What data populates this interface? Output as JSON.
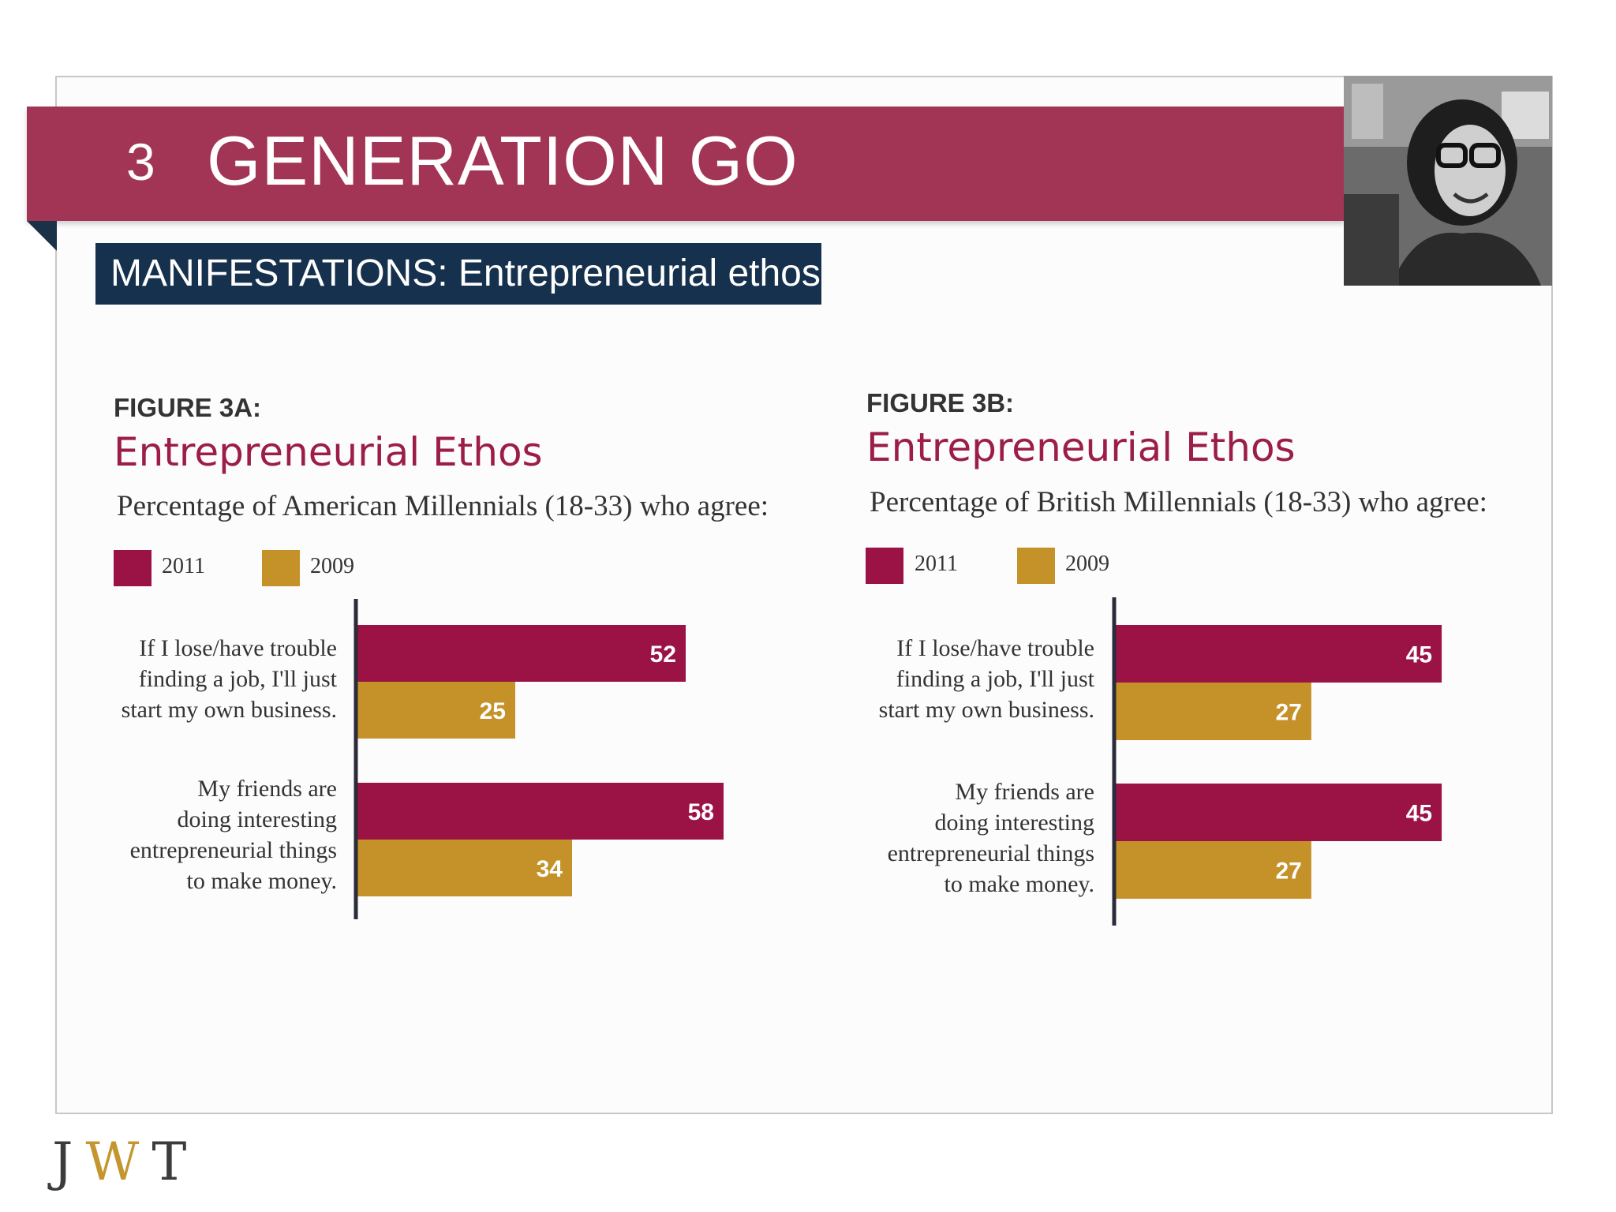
{
  "header": {
    "section_number": "3",
    "title": "GENERATION GO",
    "subtitle": "MANIFESTATIONS: Entrepreneurial ethos"
  },
  "brand": {
    "logo_j": "J",
    "logo_w": "W",
    "logo_t": "T"
  },
  "colors": {
    "banner": "#a23555",
    "subtitle_bar": "#16314d",
    "series_2011": "#9b1244",
    "series_2009": "#c5922a"
  },
  "figures": [
    {
      "label": "FIGURE 3A:",
      "title": "Entrepreneurial Ethos",
      "description": "Percentage of American Millennials (18-33) who agree:",
      "legend": [
        "2011",
        "2009"
      ],
      "questions": [
        "If I lose/have trouble\nfinding a job, I'll just\nstart my own business.",
        "My friends are\ndoing interesting\nentrepreneurial things\nto make money."
      ]
    },
    {
      "label": "FIGURE 3B:",
      "title": "Entrepreneurial Ethos",
      "description": "Percentage of British Millennials (18-33) who agree:",
      "legend": [
        "2011",
        "2009"
      ],
      "questions": [
        "If I lose/have trouble\nfinding a job, I'll just\nstart my own business.",
        "My friends are\ndoing interesting\nentrepreneurial things\nto make money."
      ]
    }
  ],
  "chart_data": [
    {
      "type": "bar",
      "orientation": "horizontal",
      "title": "Entrepreneurial Ethos",
      "categories": [
        "If I lose/have trouble finding a job, I'll just start my own business.",
        "My friends are doing interesting entrepreneurial things to make money."
      ],
      "series": [
        {
          "name": "2011",
          "values": [
            52,
            58
          ],
          "color": "#9b1244"
        },
        {
          "name": "2009",
          "values": [
            25,
            34
          ],
          "color": "#c5922a"
        }
      ],
      "legend_position": "top-left",
      "grid": false
    },
    {
      "type": "bar",
      "orientation": "horizontal",
      "title": "Entrepreneurial Ethos",
      "categories": [
        "If I lose/have trouble finding a job, I'll just start my own business.",
        "My friends are doing interesting entrepreneurial things to make money."
      ],
      "series": [
        {
          "name": "2011",
          "values": [
            45,
            45
          ],
          "color": "#9b1244"
        },
        {
          "name": "2009",
          "values": [
            27,
            27
          ],
          "color": "#c5922a"
        }
      ],
      "legend_position": "top-left",
      "grid": false
    }
  ]
}
